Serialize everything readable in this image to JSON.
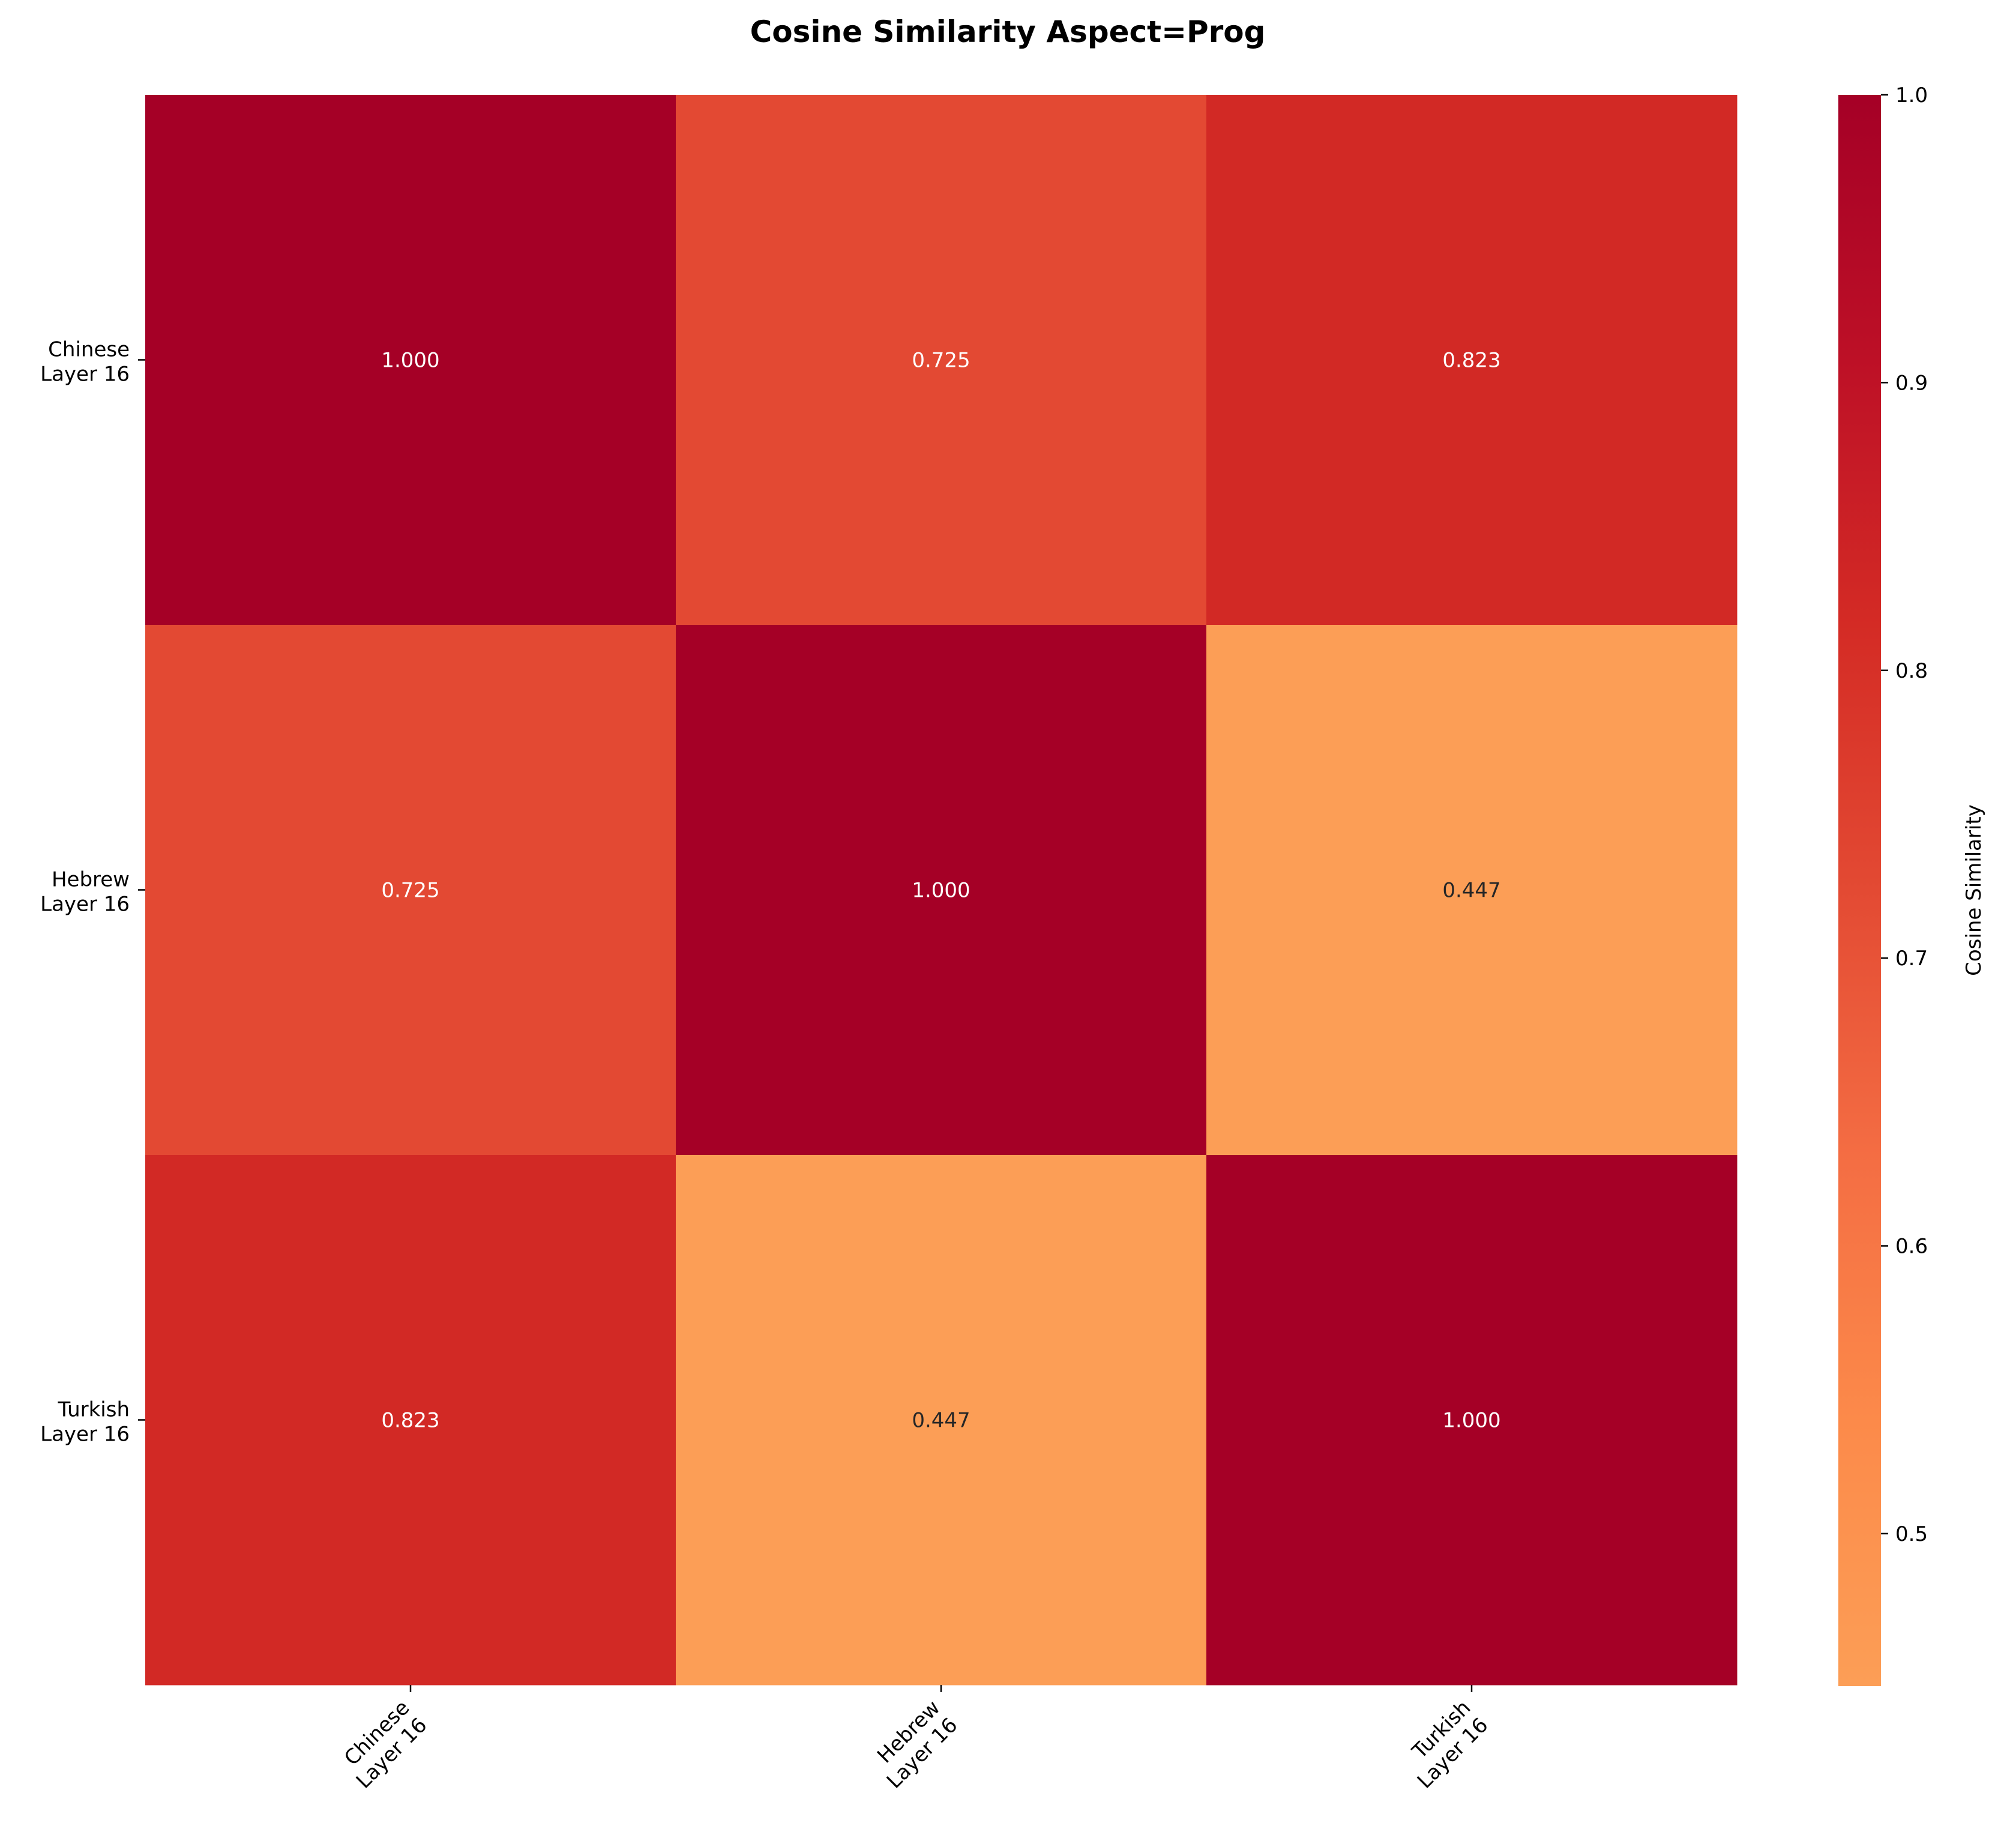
{
  "chart_data": {
    "type": "heatmap",
    "title": "Cosine Similarity Aspect=Prog",
    "xlabel": "",
    "ylabel": "",
    "rows": [
      [
        "Chinese",
        "Layer 16"
      ],
      [
        "Hebrew",
        "Layer 16"
      ],
      [
        "Turkish",
        "Layer 16"
      ]
    ],
    "columns": [
      [
        "Chinese",
        "Layer 16"
      ],
      [
        "Hebrew",
        "Layer 16"
      ],
      [
        "Turkish",
        "Layer 16"
      ]
    ],
    "values": [
      [
        1.0,
        0.725,
        0.823
      ],
      [
        0.725,
        1.0,
        0.447
      ],
      [
        0.823,
        0.447,
        1.0
      ]
    ],
    "value_labels": [
      [
        "1.000",
        "0.725",
        "0.823"
      ],
      [
        "0.725",
        "1.000",
        "0.447"
      ],
      [
        "0.823",
        "0.447",
        "1.000"
      ]
    ],
    "colorbar": {
      "label": "Cosine Similarity",
      "vmin": 0.447,
      "vmax": 1.0,
      "ticks": [
        0.5,
        0.6,
        0.7,
        0.8,
        0.9,
        1.0
      ],
      "tick_labels": [
        "0.5",
        "0.6",
        "0.7",
        "0.8",
        "0.9",
        "1.0"
      ],
      "colormap": "YlOrRd-upper",
      "colormap_stops": [
        "#fc9e56",
        "#fc8a4a",
        "#f46d43",
        "#e34a33",
        "#d42b25",
        "#bd1026",
        "#a50026"
      ]
    },
    "grid": false,
    "legend": "colorbar-right"
  }
}
